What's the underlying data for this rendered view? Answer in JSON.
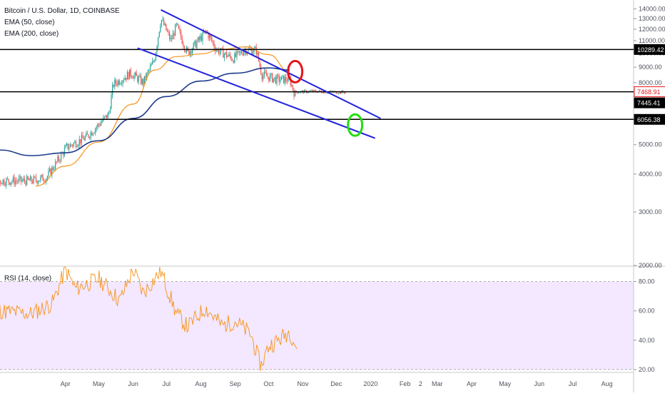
{
  "legend": {
    "symbol": "Bitcoin / U.S. Dollar, 1D, COINBASE",
    "ema50": "EMA (50, close)",
    "ema200": "EMA (200, close)",
    "rsi": "RSI (14, close)"
  },
  "colors": {
    "up": "#26a69a",
    "down": "#ef5350",
    "ema50": "#f7931a",
    "ema200": "#1b3a8c",
    "trendline": "#2222dd",
    "hline": "#000000",
    "rsi": "#f7931a",
    "rsi_band": "#f3e8ff",
    "circle_red": "#e8131a",
    "circle_green": "#22dd11"
  },
  "chart_data": [
    {
      "type": "candlestick",
      "title": "Bitcoin / U.S. Dollar, 1D, COINBASE",
      "x_tick_labels": [
        "Apr",
        "May",
        "Jun",
        "Jul",
        "Aug",
        "Sep",
        "Oct",
        "Nov",
        "Dec",
        "2020",
        "Feb",
        "2",
        "Mar",
        "Apr",
        "May",
        "Jun",
        "Jul",
        "Aug"
      ],
      "y_tick_labels": [
        "2000.00",
        "3000.00",
        "4000.00",
        "5000.00",
        "6000.00",
        "7000.00",
        "8000.00",
        "9000.00",
        "10000.00",
        "11000.00",
        "12000.00",
        "13000.00",
        "14000.00"
      ],
      "ylim": [
        2000,
        14500
      ],
      "price_labels": [
        {
          "value": "10289.42",
          "style": "black"
        },
        {
          "value": "7468.91",
          "style": "red"
        },
        {
          "value": "7445.41",
          "style": "black"
        },
        {
          "value": "6056.38",
          "style": "black"
        }
      ],
      "horizontal_lines": [
        10289.42,
        7468.91,
        6056.38
      ],
      "series": [
        {
          "name": "EMA (50, close)",
          "x": [
            "2019-03-05",
            "2019-04-01",
            "2019-05-01",
            "2019-06-01",
            "2019-06-20",
            "2019-07-10",
            "2019-08-01",
            "2019-08-20",
            "2019-09-10",
            "2019-10-01",
            "2019-10-20"
          ],
          "values": [
            3650,
            4250,
            5100,
            6800,
            8800,
            9750,
            9950,
            10300,
            10500,
            9900,
            8700
          ]
        },
        {
          "name": "EMA (200, close)",
          "x": [
            "2019-01-01",
            "2019-02-01",
            "2019-03-01",
            "2019-04-01",
            "2019-05-01",
            "2019-06-01",
            "2019-07-01",
            "2019-08-01",
            "2019-09-01",
            "2019-10-01",
            "2019-10-20"
          ],
          "values": [
            5100,
            4800,
            4600,
            4700,
            5150,
            6100,
            7200,
            8100,
            8600,
            8950,
            8800
          ]
        }
      ],
      "ohlc": [
        {
          "x": "2019-03-01",
          "close": 3800
        },
        {
          "x": "2019-03-15",
          "close": 3900
        },
        {
          "x": "2019-04-02",
          "close": 4900
        },
        {
          "x": "2019-04-20",
          "close": 5300
        },
        {
          "x": "2019-05-10",
          "close": 6300
        },
        {
          "x": "2019-05-14",
          "close": 7900
        },
        {
          "x": "2019-05-30",
          "close": 8600
        },
        {
          "x": "2019-06-10",
          "close": 8000
        },
        {
          "x": "2019-06-20",
          "close": 9500
        },
        {
          "x": "2019-06-26",
          "close": 13000
        },
        {
          "x": "2019-07-05",
          "close": 11000
        },
        {
          "x": "2019-07-10",
          "close": 12300
        },
        {
          "x": "2019-07-20",
          "close": 10000
        },
        {
          "x": "2019-08-06",
          "close": 11800
        },
        {
          "x": "2019-08-15",
          "close": 10300
        },
        {
          "x": "2019-08-30",
          "close": 9600
        },
        {
          "x": "2019-09-10",
          "close": 10300
        },
        {
          "x": "2019-09-20",
          "close": 10200
        },
        {
          "x": "2019-09-25",
          "close": 8500
        },
        {
          "x": "2019-10-08",
          "close": 8200
        },
        {
          "x": "2019-10-20",
          "close": 8200
        },
        {
          "x": "2019-10-24",
          "close": 7450
        },
        {
          "x": "2019-11-10",
          "close": 7500
        },
        {
          "x": "2019-11-25",
          "close": 7450
        },
        {
          "x": "2019-12-10",
          "close": 7445
        }
      ],
      "trendlines": [
        {
          "from": {
            "x": "2019-06-26",
            "y": 13900
          },
          "to": {
            "x": "2020-01-10",
            "y": 6100
          }
        },
        {
          "from": {
            "x": "2019-06-05",
            "y": 10400
          },
          "to": {
            "x": "2020-01-05",
            "y": 5250
          }
        }
      ],
      "annotations": [
        {
          "type": "circle",
          "color": "red",
          "x": "2019-10-25",
          "y": 8700
        },
        {
          "type": "circle",
          "color": "green",
          "x": "2019-12-18",
          "y": 5800
        }
      ]
    },
    {
      "type": "line",
      "title": "RSI (14, close)",
      "y_tick_labels": [
        "20.00",
        "40.00",
        "60.00",
        "80.00"
      ],
      "ylim": [
        18,
        90
      ],
      "band": [
        20,
        80
      ],
      "series": [
        {
          "name": "RSI (14, close)",
          "x": [
            "2019-01-01",
            "2019-02-01",
            "2019-03-01",
            "2019-03-20",
            "2019-04-01",
            "2019-04-10",
            "2019-05-01",
            "2019-05-20",
            "2019-06-01",
            "2019-06-10",
            "2019-06-26",
            "2019-07-10",
            "2019-07-20",
            "2019-08-05",
            "2019-08-20",
            "2019-09-01",
            "2019-09-15",
            "2019-09-24",
            "2019-10-01",
            "2019-10-10",
            "2019-10-20",
            "2019-10-27"
          ],
          "values": [
            55,
            60,
            58,
            65,
            88,
            75,
            82,
            67,
            88,
            72,
            87,
            58,
            49,
            62,
            50,
            53,
            44,
            22,
            36,
            40,
            46,
            34
          ]
        }
      ]
    }
  ]
}
